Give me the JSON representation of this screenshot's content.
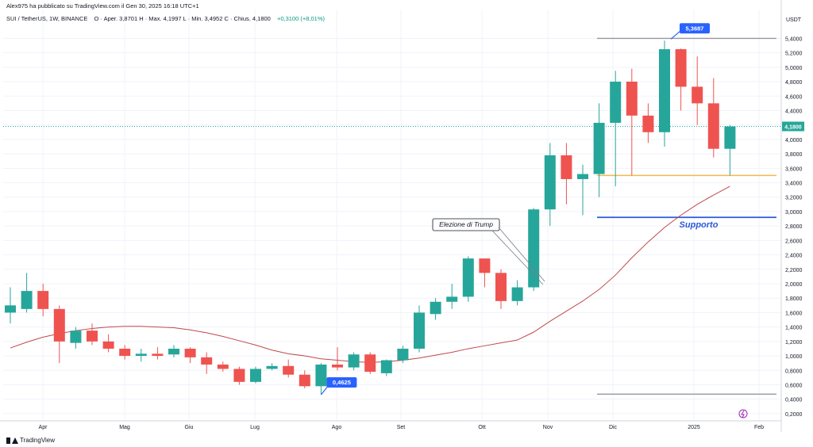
{
  "header": {
    "published": "Alex975 ha pubblicato su TradingView.com il Gen 30, 2025 16:18 UTC+1",
    "symbol": "SUI / TetherUS, 1W, BINANCE",
    "ohlc": "O · Aper. 3,8701  H · Max. 4,1997  L · Min. 3,4952  C · Chius. 4,1800",
    "change": "+0,3100 (+8,01%)"
  },
  "footer": {
    "brand": "TradingView"
  },
  "colors": {
    "up": "#26a69a",
    "down": "#ef5350",
    "ma": "#c2484a",
    "support": "#2a59d9",
    "resistance_orange": "#f2b94d",
    "label_bg": "#2962ff"
  },
  "chart_data": {
    "type": "candlestick",
    "currency": "USDT",
    "ylim": [
      0.1,
      5.8
    ],
    "y_ticks": [
      "5,4000",
      "5,2000",
      "5,0000",
      "4,8000",
      "4,6000",
      "4,4000",
      "4,2000",
      "4,0000",
      "3,8000",
      "3,6000",
      "3,4000",
      "3,2000",
      "3,0000",
      "2,8000",
      "2,6000",
      "2,4000",
      "2,2000",
      "2,0000",
      "1,8000",
      "1,6000",
      "1,4000",
      "1,2000",
      "1,0000",
      "0,8000",
      "0,6000",
      "0,4000",
      "0,2000"
    ],
    "x_labels": [
      "Apr",
      "Mag",
      "Giu",
      "Lug",
      "Ago",
      "Set",
      "Ott",
      "Nov",
      "Dic",
      "2025",
      "Feb"
    ],
    "candles": [
      {
        "o": 1.6,
        "h": 1.95,
        "l": 1.45,
        "c": 1.7
      },
      {
        "o": 1.65,
        "h": 2.15,
        "l": 1.6,
        "c": 1.9
      },
      {
        "o": 1.9,
        "h": 2.0,
        "l": 1.55,
        "c": 1.65
      },
      {
        "o": 1.65,
        "h": 1.7,
        "l": 0.9,
        "c": 1.2
      },
      {
        "o": 1.18,
        "h": 1.4,
        "l": 1.1,
        "c": 1.35
      },
      {
        "o": 1.35,
        "h": 1.45,
        "l": 1.15,
        "c": 1.2
      },
      {
        "o": 1.2,
        "h": 1.3,
        "l": 1.05,
        "c": 1.1
      },
      {
        "o": 1.1,
        "h": 1.15,
        "l": 0.95,
        "c": 1.0
      },
      {
        "o": 1.0,
        "h": 1.1,
        "l": 0.92,
        "c": 1.03
      },
      {
        "o": 1.03,
        "h": 1.12,
        "l": 0.95,
        "c": 1.0
      },
      {
        "o": 1.02,
        "h": 1.15,
        "l": 0.98,
        "c": 1.1
      },
      {
        "o": 1.1,
        "h": 1.12,
        "l": 0.9,
        "c": 0.98
      },
      {
        "o": 0.98,
        "h": 1.05,
        "l": 0.75,
        "c": 0.88
      },
      {
        "o": 0.88,
        "h": 0.92,
        "l": 0.78,
        "c": 0.82
      },
      {
        "o": 0.82,
        "h": 0.85,
        "l": 0.6,
        "c": 0.64
      },
      {
        "o": 0.64,
        "h": 0.85,
        "l": 0.62,
        "c": 0.82
      },
      {
        "o": 0.82,
        "h": 0.9,
        "l": 0.8,
        "c": 0.86
      },
      {
        "o": 0.86,
        "h": 0.95,
        "l": 0.7,
        "c": 0.74
      },
      {
        "o": 0.74,
        "h": 0.8,
        "l": 0.55,
        "c": 0.58
      },
      {
        "o": 0.58,
        "h": 0.9,
        "l": 0.4625,
        "c": 0.88
      },
      {
        "o": 0.88,
        "h": 1.12,
        "l": 0.8,
        "c": 0.84
      },
      {
        "o": 0.84,
        "h": 1.05,
        "l": 0.8,
        "c": 1.02
      },
      {
        "o": 1.02,
        "h": 1.05,
        "l": 0.75,
        "c": 0.78
      },
      {
        "o": 0.76,
        "h": 0.95,
        "l": 0.72,
        "c": 0.94
      },
      {
        "o": 0.94,
        "h": 1.14,
        "l": 0.9,
        "c": 1.1
      },
      {
        "o": 1.1,
        "h": 1.7,
        "l": 1.05,
        "c": 1.6
      },
      {
        "o": 1.58,
        "h": 1.8,
        "l": 1.5,
        "c": 1.75
      },
      {
        "o": 1.75,
        "h": 2.0,
        "l": 1.65,
        "c": 1.82
      },
      {
        "o": 1.82,
        "h": 2.38,
        "l": 1.75,
        "c": 2.35
      },
      {
        "o": 2.35,
        "h": 2.35,
        "l": 1.95,
        "c": 2.15
      },
      {
        "o": 2.15,
        "h": 2.2,
        "l": 1.65,
        "c": 1.76
      },
      {
        "o": 1.76,
        "h": 2.05,
        "l": 1.7,
        "c": 1.95
      },
      {
        "o": 1.95,
        "h": 3.05,
        "l": 1.9,
        "c": 3.03
      },
      {
        "o": 3.03,
        "h": 3.95,
        "l": 2.8,
        "c": 3.78
      },
      {
        "o": 3.78,
        "h": 3.95,
        "l": 3.1,
        "c": 3.45
      },
      {
        "o": 3.45,
        "h": 3.65,
        "l": 2.95,
        "c": 3.52
      },
      {
        "o": 3.52,
        "h": 4.5,
        "l": 3.2,
        "c": 4.23
      },
      {
        "o": 4.23,
        "h": 4.95,
        "l": 3.35,
        "c": 4.8
      },
      {
        "o": 4.8,
        "h": 4.98,
        "l": 3.5,
        "c": 4.33
      },
      {
        "o": 4.33,
        "h": 4.5,
        "l": 3.95,
        "c": 4.1
      },
      {
        "o": 4.1,
        "h": 5.3687,
        "l": 3.9,
        "c": 5.25
      },
      {
        "o": 5.25,
        "h": 5.26,
        "l": 4.4,
        "c": 4.73
      },
      {
        "o": 4.73,
        "h": 5.15,
        "l": 4.2,
        "c": 4.5
      },
      {
        "o": 4.5,
        "h": 4.85,
        "l": 3.75,
        "c": 3.87
      },
      {
        "o": 3.87,
        "h": 4.2,
        "l": 3.5,
        "c": 4.18
      }
    ],
    "moving_average": [
      1.11,
      1.19,
      1.26,
      1.31,
      1.35,
      1.38,
      1.4,
      1.41,
      1.41,
      1.4,
      1.39,
      1.36,
      1.32,
      1.27,
      1.21,
      1.15,
      1.08,
      1.03,
      1.0,
      0.96,
      0.94,
      0.92,
      0.91,
      0.92,
      0.94,
      0.97,
      1.01,
      1.05,
      1.1,
      1.14,
      1.18,
      1.22,
      1.33,
      1.48,
      1.62,
      1.76,
      1.92,
      2.12,
      2.36,
      2.58,
      2.78,
      2.95,
      3.1,
      3.23,
      3.35
    ],
    "last_price": {
      "value": 4.18,
      "label": "4,1800"
    },
    "high_marker": {
      "value": 5.3687,
      "label": "5,3687"
    },
    "low_marker": {
      "value": 0.4625,
      "label": "0,4625"
    },
    "resistance_line": 5.4,
    "support_line": 2.92,
    "orange_line": 3.5,
    "bottom_line": 0.47,
    "annotations": {
      "support": "Supporto",
      "trump": "Elezione di Trump"
    }
  }
}
